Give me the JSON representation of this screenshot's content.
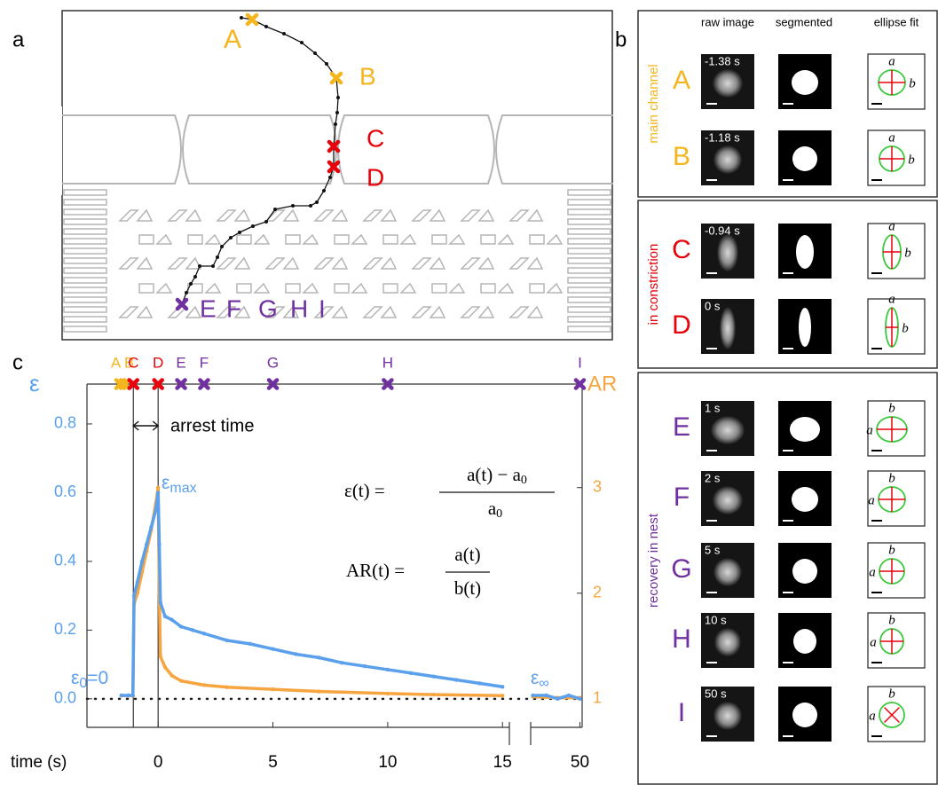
{
  "panel_a": {
    "label": "a",
    "points": [
      {
        "label": "A",
        "color": "#f5b51c"
      },
      {
        "label": "B",
        "color": "#f5b51c"
      },
      {
        "label": "C",
        "color": "#e8000b"
      },
      {
        "label": "D",
        "color": "#e8000b"
      },
      {
        "label": "E",
        "color": "#7030a0"
      },
      {
        "label": "F",
        "color": "#7030a0"
      },
      {
        "label": "G",
        "color": "#7030a0"
      },
      {
        "label": "H",
        "color": "#7030a0"
      },
      {
        "label": "I",
        "color": "#7030a0"
      }
    ]
  },
  "panel_b": {
    "label": "b",
    "columns": [
      "raw image",
      "segmented",
      "ellipse fit"
    ],
    "ellipse_labels": [
      "a",
      "b"
    ],
    "groups": [
      {
        "label": "main channel",
        "color": "#f5b51c",
        "rows": [
          {
            "letter": "A",
            "time": "-1.38 s"
          },
          {
            "letter": "B",
            "time": "-1.18 s"
          }
        ]
      },
      {
        "label": "in constriction",
        "color": "#e8000b",
        "rows": [
          {
            "letter": "C",
            "time": "-0.94 s"
          },
          {
            "letter": "D",
            "time": "0 s"
          }
        ]
      },
      {
        "label": "recovery in nest",
        "color": "#7030a0",
        "rows": [
          {
            "letter": "E",
            "time": "1 s"
          },
          {
            "letter": "F",
            "time": "2 s"
          },
          {
            "letter": "G",
            "time": "5 s"
          },
          {
            "letter": "H",
            "time": "10 s"
          },
          {
            "letter": "I",
            "time": "50 s"
          }
        ]
      }
    ]
  },
  "chart_data": {
    "type": "line",
    "label": "c",
    "xlabel": "time (s)",
    "ylabel": "ε",
    "y2label": "AR",
    "xlim": [
      [
        -3.1,
        15.3
      ],
      [
        47.8,
        50.1
      ]
    ],
    "xticks": [
      0,
      5,
      10,
      15,
      50
    ],
    "ylim": [
      -0.083,
      0.916
    ],
    "yticks": [
      {
        "value": 0,
        "label": "0.0"
      },
      0.2,
      0.4,
      0.6,
      0.8
    ],
    "y2lim": [
      0.73,
      3.98
    ],
    "y2ticks": [
      1,
      2,
      3
    ],
    "events": [
      {
        "label": "A",
        "t": -1.65,
        "color": "#f5b51c"
      },
      {
        "label": "B",
        "t": -1.45,
        "color": "#f5b51c"
      },
      {
        "label": "C",
        "t": -1.08,
        "color": "#e8000b"
      },
      {
        "label": "D",
        "t": 0,
        "color": "#e8000b"
      },
      {
        "label": "E",
        "t": 1,
        "color": "#7030a0"
      },
      {
        "label": "F",
        "t": 2,
        "color": "#7030a0"
      },
      {
        "label": "G",
        "t": 5,
        "color": "#7030a0"
      },
      {
        "label": "H",
        "t": 10,
        "color": "#7030a0"
      },
      {
        "label": "I",
        "t": 50,
        "color": "#7030a0"
      }
    ],
    "series": [
      {
        "name": "AR",
        "color": "#f7a541",
        "axis": "y2",
        "x": [
          -1.6,
          -1.3,
          -1.1,
          -1.05,
          -0.9,
          -0.7,
          -0.5,
          -0.3,
          -0.1,
          0,
          0.05,
          0.1,
          0.3,
          0.6,
          1,
          2,
          3,
          5,
          7,
          10,
          12,
          15,
          47.9,
          49,
          50
        ],
        "values": [
          1.03,
          1.03,
          1.03,
          1.9,
          2.0,
          2.2,
          2.4,
          2.6,
          2.85,
          3.0,
          2.0,
          1.4,
          1.3,
          1.22,
          1.17,
          1.13,
          1.11,
          1.09,
          1.07,
          1.05,
          1.04,
          1.03,
          1.02,
          1.01,
          1.01
        ]
      },
      {
        "name": "ε",
        "color": "#5aa0ec",
        "x": [
          -1.6,
          -1.3,
          -1.1,
          -1.05,
          -0.9,
          -0.7,
          -0.5,
          -0.3,
          -0.1,
          0,
          0.05,
          0.1,
          0.3,
          0.6,
          1,
          1.5,
          2,
          3,
          4,
          5,
          6,
          7,
          8,
          9,
          10,
          11,
          12,
          13,
          14,
          15,
          47.9,
          48.5,
          49,
          49.5,
          50
        ],
        "values": [
          0.01,
          0.01,
          0.01,
          0.3,
          0.34,
          0.4,
          0.45,
          0.5,
          0.55,
          0.6,
          0.45,
          0.28,
          0.24,
          0.23,
          0.21,
          0.2,
          0.19,
          0.17,
          0.16,
          0.145,
          0.13,
          0.12,
          0.105,
          0.095,
          0.085,
          0.075,
          0.065,
          0.055,
          0.045,
          0.035,
          0.01,
          0.01,
          0.0,
          0.01,
          0.0
        ]
      }
    ],
    "annotations": {
      "arrest": "arrest time",
      "eps_max": [
        "ε",
        "max"
      ],
      "eps_0": [
        "ε",
        "0",
        "=0"
      ],
      "eps_inf": [
        "ε",
        "∞"
      ]
    },
    "formulas": {
      "eps": {
        "lhs": "ε(t) =",
        "num": "a(t) − a",
        "num_sub": "0",
        "den": "a",
        "den_sub": "0"
      },
      "ar": {
        "lhs": "AR(t) =",
        "num": "a(t)",
        "den": "b(t)"
      }
    }
  }
}
